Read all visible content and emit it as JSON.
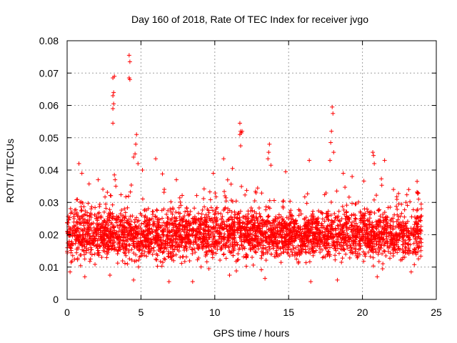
{
  "chart_data": {
    "type": "scatter",
    "title": "Day 160 of 2018, Rate Of TEC Index for receiver jvgo",
    "xlabel": "GPS time / hours",
    "ylabel": "ROTI / TECUs",
    "xlim": [
      0,
      25
    ],
    "ylim": [
      0,
      0.08
    ],
    "x_ticks": [
      "0",
      "5",
      "10",
      "15",
      "20",
      "25"
    ],
    "y_ticks": [
      "0",
      "0.01",
      "0.02",
      "0.03",
      "0.04",
      "0.05",
      "0.06",
      "0.07",
      "0.08"
    ],
    "grid": true,
    "marker": "+",
    "color": "#ff0000",
    "series": [
      {
        "name": "ROTI",
        "summary": {
          "typical_range": [
            0.01,
            0.03
          ],
          "x_extent": [
            0,
            24
          ]
        },
        "points": [
          [
            3.1,
            0.0545
          ],
          [
            3.1,
            0.059
          ],
          [
            3.15,
            0.0605
          ],
          [
            3.1,
            0.063
          ],
          [
            3.15,
            0.064
          ],
          [
            3.1,
            0.0685
          ],
          [
            3.2,
            0.069
          ],
          [
            3.2,
            0.0385
          ],
          [
            3.25,
            0.037
          ],
          [
            3.3,
            0.035
          ],
          [
            4.2,
            0.0755
          ],
          [
            4.25,
            0.0735
          ],
          [
            4.2,
            0.0685
          ],
          [
            4.25,
            0.068
          ],
          [
            4.6,
            0.045
          ],
          [
            4.65,
            0.048
          ],
          [
            4.7,
            0.051
          ],
          [
            4.5,
            0.044
          ],
          [
            4.8,
            0.042
          ],
          [
            11.7,
            0.0545
          ],
          [
            11.75,
            0.052
          ],
          [
            11.8,
            0.0515
          ],
          [
            11.85,
            0.052
          ],
          [
            11.7,
            0.051
          ],
          [
            11.75,
            0.0475
          ],
          [
            13.7,
            0.048
          ],
          [
            13.65,
            0.0455
          ],
          [
            13.6,
            0.0435
          ],
          [
            13.8,
            0.0415
          ],
          [
            17.95,
            0.0595
          ],
          [
            18.0,
            0.0575
          ],
          [
            17.9,
            0.052
          ],
          [
            17.85,
            0.0485
          ],
          [
            18.05,
            0.0455
          ],
          [
            17.8,
            0.043
          ],
          [
            20.7,
            0.0455
          ],
          [
            20.75,
            0.0445
          ],
          [
            20.8,
            0.042
          ],
          [
            21.5,
            0.043
          ],
          [
            0.8,
            0.042
          ],
          [
            1.0,
            0.039
          ],
          [
            2.1,
            0.037
          ],
          [
            5.1,
            0.04
          ],
          [
            6.0,
            0.0435
          ],
          [
            7.4,
            0.037
          ],
          [
            9.9,
            0.039
          ],
          [
            10.6,
            0.0435
          ],
          [
            11.2,
            0.0405
          ],
          [
            14.8,
            0.0395
          ],
          [
            16.4,
            0.043
          ],
          [
            18.7,
            0.039
          ],
          [
            19.3,
            0.038
          ],
          [
            22.1,
            0.034
          ],
          [
            23.7,
            0.0365
          ],
          [
            23.75,
            0.033
          ],
          [
            23.8,
            0.031
          ],
          [
            0.2,
            0.0085
          ],
          [
            1.2,
            0.007
          ],
          [
            2.9,
            0.0075
          ],
          [
            4.5,
            0.006
          ],
          [
            6.9,
            0.0055
          ],
          [
            8.5,
            0.0055
          ],
          [
            11.0,
            0.0075
          ],
          [
            13.4,
            0.0065
          ],
          [
            16.5,
            0.0055
          ],
          [
            18.3,
            0.006
          ],
          [
            21.0,
            0.007
          ],
          [
            23.3,
            0.0085
          ],
          [
            9.6,
            0.0095
          ]
        ]
      }
    ]
  }
}
